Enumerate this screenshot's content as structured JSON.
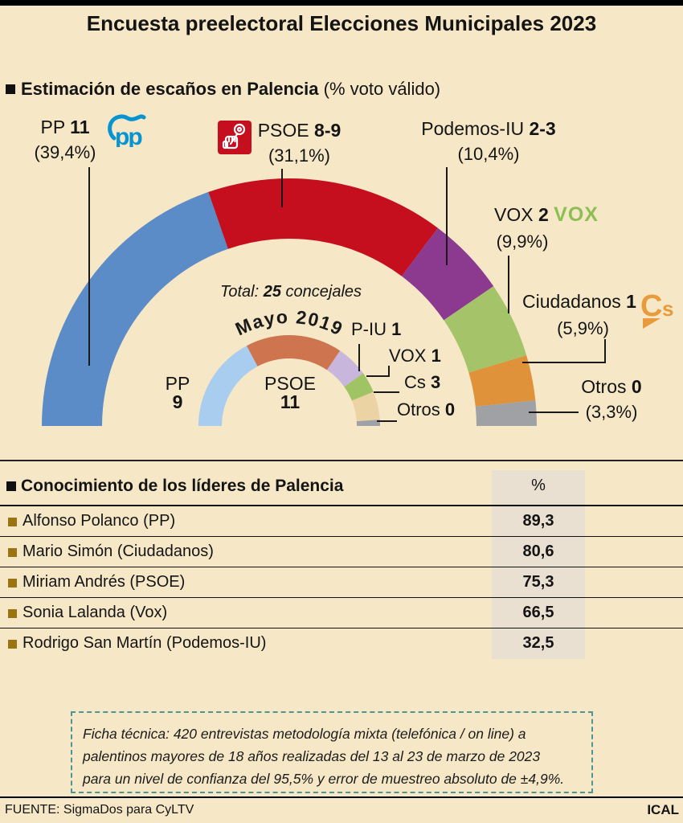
{
  "header": {
    "title": "Encuesta preelectoral Elecciones Municipales 2023"
  },
  "estimacion": {
    "title": "Estimación de escaños en Palencia",
    "subtitle": "(% voto válido)"
  },
  "chart_data": {
    "type": "semicircle_donut",
    "title": "Estimación de escaños en Palencia (% voto válido)",
    "total_label": {
      "prefix": "Total:",
      "value": "25",
      "suffix": "concejales"
    },
    "geometry_note": "outer ring = 2023 estimate (arc proportional to pct), inner ring = Mayo 2019 seats (deg)",
    "outer": {
      "name": "Estimación 2023",
      "series": [
        {
          "party": "PP",
          "seats": "11",
          "pct": 39.4,
          "pct_label": "(39,4%)",
          "color": "#5B8CC7"
        },
        {
          "party": "PSOE",
          "seats": "8-9",
          "pct": 31.1,
          "pct_label": "(31,1%)",
          "color": "#C50E1E"
        },
        {
          "party": "Podemos-IU",
          "seats": "2-3",
          "pct": 10.4,
          "pct_label": "(10,4%)",
          "color": "#8B3A90"
        },
        {
          "party": "VOX",
          "seats": "2",
          "pct": 9.9,
          "pct_label": "(9,9%)",
          "color": "#A5C469"
        },
        {
          "party": "Ciudadanos",
          "seats": "1",
          "pct": 5.9,
          "pct_label": "(5,9%)",
          "color": "#E0923A"
        },
        {
          "party": "Otros",
          "seats": "0",
          "pct": 3.3,
          "pct_label": "(3,3%)",
          "color": "#9FA1A4"
        }
      ]
    },
    "inner": {
      "title": "Mayo 2019",
      "series": [
        {
          "party": "PP",
          "seats": "9",
          "deg": 62,
          "color": "#A9CDEE"
        },
        {
          "party": "PSOE",
          "seats": "11",
          "deg": 62,
          "color": "#CE7550"
        },
        {
          "party": "P-IU",
          "seats": "1",
          "deg": 20.5,
          "color": "#C9B6DC"
        },
        {
          "party": "VOX",
          "seats": "1",
          "deg": 13.5,
          "color": "#A0C463"
        },
        {
          "party": "Cs",
          "seats": "3",
          "deg": 18,
          "color": "#EBD3A4"
        },
        {
          "party": "Otros",
          "seats": "0",
          "deg": 4,
          "color": "#9FA1A8"
        }
      ]
    }
  },
  "logos": {
    "pp": "pp",
    "vox": "VOX",
    "cs": "Cs",
    "psoe": "PSOE"
  },
  "leaders": {
    "title": "Conocimiento de los líderes de Palencia",
    "col_header": "%",
    "rows": [
      {
        "name": "Alfonso Polanco (PP)",
        "value": "89,3"
      },
      {
        "name": "Mario Simón (Ciudadanos)",
        "value": "80,6"
      },
      {
        "name": "Miriam Andrés (PSOE)",
        "value": "75,3"
      },
      {
        "name": "Sonia Lalanda (Vox)",
        "value": "66,5"
      },
      {
        "name": "Rodrigo San Martín (Podemos-IU)",
        "value": "32,5"
      }
    ]
  },
  "ficha": {
    "lines": [
      "Ficha técnica: 420 entrevistas metodología mixta (telefónica / on line) a",
      "palentinos mayores de 18 años realizadas del 13 al 23 de marzo de 2023",
      "para un nivel de confianza del 95,5% y error de muestreo absoluto de ±4,9%."
    ]
  },
  "footer": {
    "source": "FUENTE: SigmaDos para CyLTV",
    "credit": "ICAL"
  },
  "colors": {
    "background": "#F6E8C7",
    "band": "#EAE0D2",
    "bullet_gold": "#9A7313",
    "ficha_border": "#4D9694",
    "pp_logo": "#0894D2",
    "psoe_logo": "#C50E1E",
    "vox_logo": "#8CBE53",
    "cs_logo": "#E89A3C",
    "line": "#1a1a1a"
  }
}
